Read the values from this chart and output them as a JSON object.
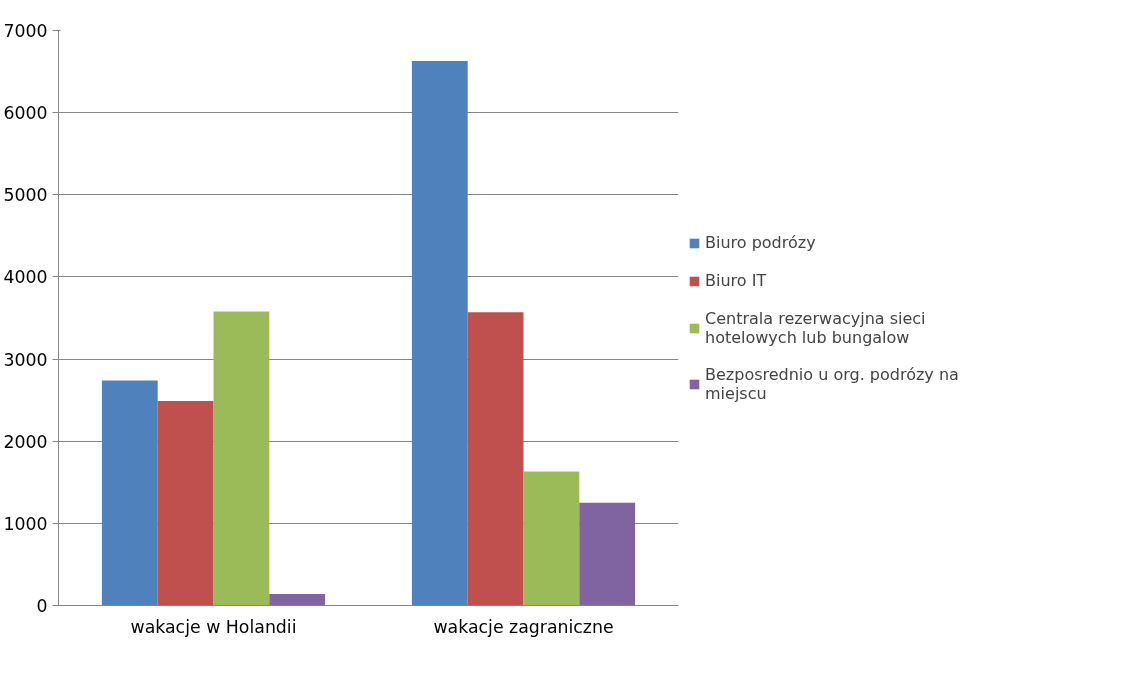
{
  "chart_data": {
    "type": "bar",
    "categories": [
      "wakacje w Holandii",
      "wakacje zagraniczne"
    ],
    "series": [
      {
        "name": "Biuro podrózy",
        "color": "#4f81bd",
        "values": [
          2740,
          6630
        ]
      },
      {
        "name": "Biuro IT",
        "color": "#c0504d",
        "values": [
          2490,
          3570
        ]
      },
      {
        "name": "Centrala rezerwacyjna sieci hotelowych lub bungalow",
        "color": "#9bbb59",
        "values": [
          3580,
          1630
        ]
      },
      {
        "name": "Bezposrednio u org. podrózy na miejscu",
        "color": "#8064a2",
        "values": [
          140,
          1250
        ]
      }
    ],
    "ylim": [
      0,
      7000
    ],
    "yticks": [
      0,
      1000,
      2000,
      3000,
      4000,
      5000,
      6000,
      7000
    ],
    "grid": "y",
    "legend": "right"
  }
}
